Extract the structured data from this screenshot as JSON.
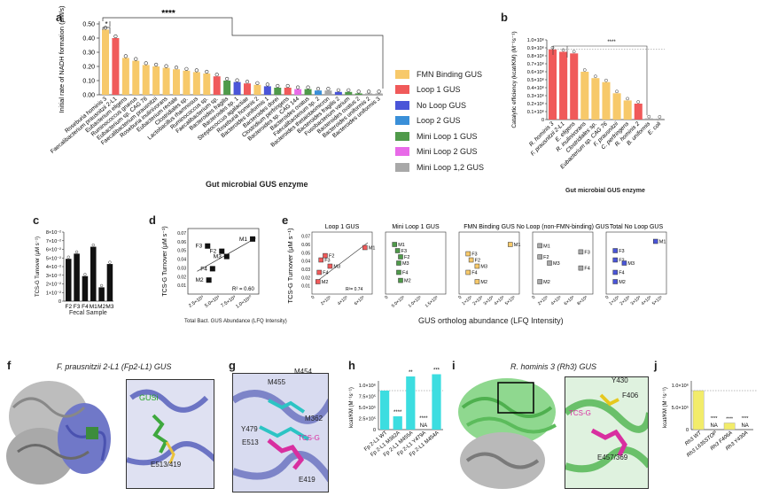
{
  "panels": {
    "a": {
      "label": "a",
      "ylabel": "Initial rate of NADH formation (μM/s)",
      "xlabel": "Gut microbial GUS enzyme",
      "sig": "****",
      "sig2": "*",
      "ticks": [
        "0.00",
        "0.10",
        "0.20",
        "0.30",
        "0.40",
        "0.50"
      ]
    },
    "b": {
      "label": "b",
      "ylabel": "Catalytic efficiency (kcat/KM) (M⁻¹s⁻¹)",
      "xlabel": "Gut microbial GUS enzyme",
      "sig": "****",
      "ticks": [
        "0",
        "0.1×10⁶",
        "0.2×10⁶",
        "0.3×10⁶",
        "0.4×10⁶",
        "0.5×10⁶",
        "0.6×10⁶",
        "0.7×10⁶",
        "0.8×10⁶",
        "0.9×10⁶",
        "1.0×10⁶"
      ],
      "categories": [
        "R. hominis 3",
        "F. prausnitzii 2-L1",
        "E. eligens",
        "R. inulinivorans",
        "Clostridiales sp.",
        "Eubacterium sp. CAG 76",
        "F. prausnitzii",
        "C. perfringens",
        "R. hominis 2",
        "B. uniformis",
        "E. coli"
      ]
    },
    "c": {
      "label": "c",
      "ylabel": "TCS-G Turnover (μM s⁻¹)",
      "xlabel": "Fecal Sample",
      "categories": [
        "F2",
        "F3",
        "F4",
        "M1",
        "M2",
        "M3"
      ],
      "ticks": [
        "0",
        "1×10⁻²",
        "2×10⁻²",
        "3×10⁻²",
        "4×10⁻²",
        "5×10⁻²",
        "6×10⁻²",
        "7×10⁻²",
        "8×10⁻²"
      ]
    },
    "d": {
      "label": "d",
      "ylabel": "TCS-G Turnover (μM s⁻¹)",
      "xlabel": "Total Bact. GUS Abundance (LFQ Intensity)",
      "r2": "R² = 0.60",
      "points": [
        "F3",
        "F2",
        "M3",
        "M1",
        "F4",
        "M2"
      ],
      "xticks": [
        "2.5×10⁹",
        "5.0×10⁹",
        "7.5×10⁹",
        "1.0×10¹⁰"
      ],
      "yticks": [
        "0.01",
        "0.02",
        "0.03",
        "0.04",
        "0.05",
        "0.06",
        "0.07"
      ]
    },
    "e": {
      "label": "e",
      "ylabel": "TCS-G Turnover (μM s⁻¹)",
      "xlabel": "GUS ortholog abundance (LFQ Intensity)",
      "subplots": [
        {
          "title": "Loop 1 GUS",
          "r2": "R²= 0.74",
          "points": [
            "F3",
            "F2",
            "M3",
            "M1",
            "F4",
            "M2"
          ],
          "xticks": [
            "0",
            "2×10⁹",
            "4×10⁹",
            "6×10⁹"
          ]
        },
        {
          "title": "Mini Loop 1 GUS",
          "points": [
            "M1",
            "F3",
            "F2",
            "M3",
            "F4",
            "M2"
          ],
          "xticks": [
            "0",
            "5.0×10⁸",
            "1.0×10⁹",
            "1.5×10⁹"
          ]
        },
        {
          "title": "FMN Binding GUS",
          "points": [
            "F3",
            "F2",
            "M3",
            "F4",
            "M2",
            "M1"
          ],
          "xticks": [
            "0",
            "1×10⁹",
            "2×10⁹",
            "3×10⁹",
            "4×10⁹",
            "5×10⁹"
          ]
        },
        {
          "title": "No Loop (non-FMN-binding) GUS",
          "points": [
            "M1",
            "F2",
            "M3",
            "F3",
            "F4",
            "M2"
          ],
          "xticks": [
            "0",
            "2×10⁸",
            "4×10⁸",
            "6×10⁸",
            "8×10⁸"
          ]
        },
        {
          "title": "Total No Loop GUS",
          "points": [
            "M1",
            "F3",
            "F2",
            "M3",
            "F4",
            "M2"
          ],
          "xticks": [
            "0",
            "1×10⁹",
            "2×10⁹",
            "3×10⁹",
            "4×10⁹",
            "5×10⁹"
          ]
        }
      ],
      "yticks": [
        "0.01",
        "0.02",
        "0.03",
        "0.04",
        "0.05",
        "0.06",
        "0.07"
      ]
    },
    "f": {
      "label": "f",
      "title": "F. prausnitzii 2-L1 (Fp2-L1) GUS",
      "ligand": "GUSi",
      "residue": "E513/419"
    },
    "g": {
      "label": "g",
      "residues": [
        "M455",
        "M454",
        "Y479",
        "M362",
        "E513",
        "TCS-G",
        "E419"
      ]
    },
    "h": {
      "label": "h",
      "ylabel": "kcat/KM (M⁻¹s⁻¹)",
      "ticks": [
        "0",
        "2.5×10⁵",
        "5.0×10⁵",
        "7.5×10⁵",
        "1.0×10⁶"
      ],
      "categories": [
        "Fp 2-L1 WT",
        "Fp 2-L1 M362A",
        "Fp 2-L1 M455A",
        "Fp 2-L1 Y479A",
        "Fp 2-L1 M454A"
      ],
      "sigs": [
        "****",
        "**",
        "****",
        "***"
      ],
      "na": "NA"
    },
    "i": {
      "label": "i",
      "title": "R. hominis 3 (Rh3) GUS",
      "residues": [
        "Y430",
        "F406",
        "TCS-G",
        "E457/369"
      ]
    },
    "j": {
      "label": "j",
      "ylabel": "kcat/KM (M⁻¹s⁻¹)",
      "ticks": [
        "0",
        "5.0×10⁵",
        "1.0×10⁶"
      ],
      "categories": [
        "Rh3 WT",
        "Rh3 L635STOP",
        "Rh3 F406A",
        "Rh3 Y430A"
      ],
      "sigs": [
        "****",
        "****",
        "****"
      ],
      "na": "NA"
    }
  },
  "legend": [
    {
      "label": "FMN Binding GUS",
      "color": "#f7c96a"
    },
    {
      "label": "Loop 1 GUS",
      "color": "#f05a5a"
    },
    {
      "label": "No Loop GUS",
      "color": "#4a55d8"
    },
    {
      "label": "Loop 2 GUS",
      "color": "#3a8fd8"
    },
    {
      "label": "Mini Loop 1 GUS",
      "color": "#4f9a4a"
    },
    {
      "label": "Mini Loop 2 GUS",
      "color": "#e86ae8"
    },
    {
      "label": "Mini Loop 1,2 GUS",
      "color": "#a8a8a8"
    }
  ],
  "a_categories": [
    "Roseburia hominis 3",
    "Faecalibacterium prausnitzii 2-L1",
    "Eubacterium eligens",
    "Ruminococcus gnavus",
    "Eubacterium sp. CAG 76",
    "Faecalibacterium prausnitzii",
    "Roseburia inulinivorans",
    "Eubacterium rectale",
    "Clostridiales sp.",
    "Lactobacillus rhamnosus",
    "Ruminococcus sp.",
    "Faecalibacterium sp.",
    "Bacteroides fragilis",
    "Bacteroides sp. 1",
    "Streptococcus agalactiae",
    "Roseburia hominis 2",
    "Bacteroides uniformis 1",
    "Bacteroides dorei",
    "Clostridium perfringens",
    "Bacteroides sp. CAG 144",
    "Bacteroides ovatus",
    "Faecalibacterium sp. 2",
    "Bacteroides thetaiotaomicron",
    "Bacteroides fragilis 2",
    "Fusobacterium varium",
    "Bacteroides ovatus 2",
    "Bacteroides uniformis 2",
    "Bacteroides uniformis 3"
  ],
  "chart_data": [
    {
      "type": "bar",
      "title": "",
      "ylabel": "Initial rate of NADH formation (μM/s)",
      "xlabel": "Gut microbial GUS enzyme",
      "ylim": [
        0,
        0.5
      ],
      "categories": [
        "Roseburia hominis 3",
        "Faecalibacterium prausnitzii 2-L1",
        "Eubacterium eligens",
        "Ruminococcus gnavus",
        "Eubacterium sp. CAG 76",
        "Faecalibacterium prausnitzii",
        "Roseburia inulinivorans",
        "Eubacterium rectale",
        "Clostridiales sp.",
        "Lactobacillus rhamnosus",
        "Ruminococcus sp.",
        "Faecalibacterium sp.",
        "Bacteroides fragilis",
        "Bacteroides sp. 1",
        "Streptococcus agalactiae",
        "Roseburia hominis 2",
        "Bacteroides uniformis 1",
        "Bacteroides dorei",
        "Clostridium perfringens",
        "Bacteroides sp. CAG 144",
        "Bacteroides ovatus",
        "Faecalibacterium sp. 2",
        "Bacteroides thetaiotaomicron",
        "Bacteroides fragilis 2",
        "Fusobacterium varium",
        "Bacteroides ovatus 2",
        "Bacteroides uniformis 2",
        "Bacteroides uniformis 3"
      ],
      "values": [
        0.46,
        0.4,
        0.26,
        0.24,
        0.21,
        0.2,
        0.19,
        0.18,
        0.17,
        0.16,
        0.15,
        0.13,
        0.1,
        0.09,
        0.08,
        0.07,
        0.06,
        0.05,
        0.05,
        0.04,
        0.04,
        0.03,
        0.03,
        0.02,
        0.02,
        0.01,
        0.01,
        0.01
      ],
      "groups": [
        "FMN Binding GUS",
        "Loop 1 GUS",
        "FMN Binding GUS",
        "FMN Binding GUS",
        "FMN Binding GUS",
        "FMN Binding GUS",
        "FMN Binding GUS",
        "FMN Binding GUS",
        "FMN Binding GUS",
        "FMN Binding GUS",
        "FMN Binding GUS",
        "Loop 1 GUS",
        "Mini Loop 1 GUS",
        "No Loop GUS",
        "Loop 1 GUS",
        "FMN Binding GUS",
        "No Loop GUS",
        "Mini Loop 1 GUS",
        "Loop 1 GUS",
        "Mini Loop 2 GUS",
        "Mini Loop 1 GUS",
        "Loop 2 GUS",
        "Mini Loop 1,2 GUS",
        "No Loop GUS",
        "Mini Loop 1 GUS",
        "Mini Loop 1 GUS",
        "Mini Loop 1,2 GUS",
        "Mini Loop 1,2 GUS"
      ]
    },
    {
      "type": "bar",
      "ylabel": "Catalytic efficiency (kcat/KM) (M⁻¹s⁻¹)",
      "ylim": [
        0,
        1000000
      ],
      "categories": [
        "R. hominis 3",
        "F. prausnitzii 2-L1",
        "E. eligens",
        "R. inulinivorans",
        "Clostridiales sp.",
        "Eubacterium sp. CAG 76",
        "F. prausnitzii",
        "C. perfringens",
        "R. hominis 2",
        "B. uniformis",
        "E. coli"
      ],
      "values": [
        880000,
        850000,
        830000,
        600000,
        520000,
        470000,
        330000,
        240000,
        200000,
        15000,
        12000
      ]
    },
    {
      "type": "bar",
      "ylabel": "TCS-G Turnover (μM s⁻¹)",
      "xlabel": "Fecal Sample",
      "ylim": [
        0,
        0.08
      ],
      "categories": [
        "F2",
        "F3",
        "F4",
        "M1",
        "M2",
        "M3"
      ],
      "values": [
        0.049,
        0.055,
        0.029,
        0.063,
        0.016,
        0.043
      ]
    },
    {
      "type": "scatter",
      "ylabel": "TCS-G Turnover (μM s⁻¹)",
      "xlabel": "Total Bact. GUS Abundance (LFQ Intensity)",
      "labels": [
        "F3",
        "F2",
        "M3",
        "M1",
        "F4",
        "M2"
      ],
      "x": [
        3200000000.0,
        5500000000.0,
        6300000000.0,
        10500000000.0,
        4000000000.0,
        3400000000.0
      ],
      "y": [
        0.055,
        0.049,
        0.043,
        0.063,
        0.029,
        0.016
      ]
    },
    {
      "type": "bar",
      "ylabel": "kcat/KM (M⁻¹s⁻¹)",
      "ylim": [
        0,
        1250000
      ],
      "categories": [
        "Fp 2-L1 WT",
        "Fp 2-L1 M362A",
        "Fp 2-L1 M455A",
        "Fp 2-L1 Y479A",
        "Fp 2-L1 M454A"
      ],
      "values": [
        880000,
        300000,
        1200000,
        0,
        1250000
      ]
    },
    {
      "type": "bar",
      "ylabel": "kcat/KM (M⁻¹s⁻¹)",
      "ylim": [
        0,
        1250000
      ],
      "categories": [
        "Rh3 WT",
        "Rh3 L635STOP",
        "Rh3 F406A",
        "Rh3 Y430A"
      ],
      "values": [
        880000,
        0,
        150000,
        0
      ]
    }
  ]
}
